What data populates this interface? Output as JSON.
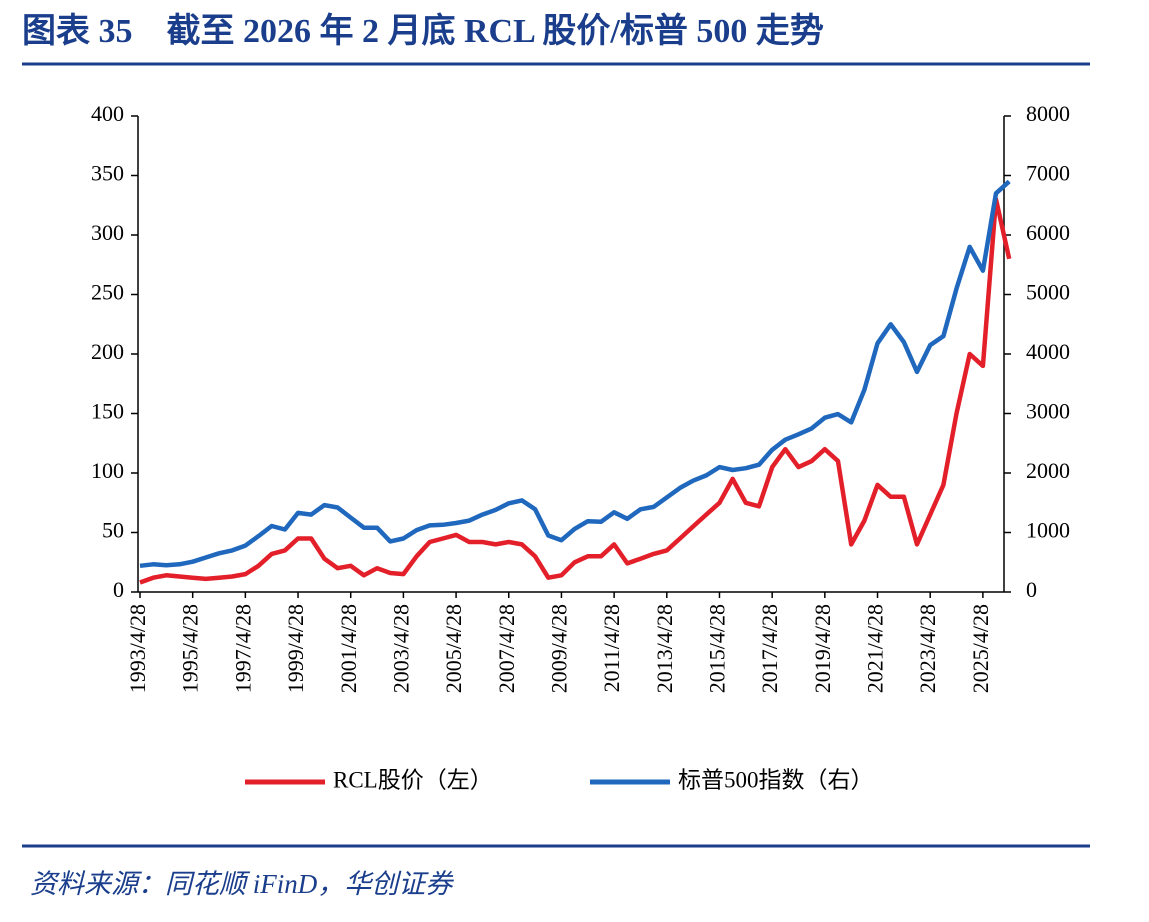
{
  "chart_data": {
    "type": "line",
    "title": "图表 35　截至 2026 年 2 月底 RCL 股价/标普 500 走势",
    "source": "资料来源：同花顺 iFinD，华创证券",
    "categories": [
      "1993/4/28",
      null,
      null,
      null,
      "1995/4/28",
      null,
      null,
      null,
      "1997/4/28",
      null,
      null,
      null,
      "1999/4/28",
      null,
      null,
      null,
      "2001/4/28",
      null,
      null,
      null,
      "2003/4/28",
      null,
      null,
      null,
      "2005/4/28",
      null,
      null,
      null,
      "2007/4/28",
      null,
      null,
      null,
      "2009/4/28",
      null,
      null,
      null,
      "2011/4/28",
      null,
      null,
      null,
      "2013/4/28",
      null,
      null,
      null,
      "2015/4/28",
      null,
      null,
      null,
      "2017/4/28",
      null,
      null,
      null,
      "2019/4/28",
      null,
      null,
      null,
      "2021/4/28",
      null,
      null,
      null,
      "2023/4/28",
      null,
      null,
      null,
      "2025/4/28",
      null,
      null
    ],
    "series": [
      {
        "name": "RCL股价（左）",
        "color": "#e3202a",
        "values": [
          8,
          12,
          14,
          13,
          12,
          11,
          12,
          13,
          15,
          22,
          32,
          35,
          45,
          45,
          28,
          20,
          22,
          14,
          20,
          16,
          15,
          30,
          42,
          45,
          48,
          42,
          42,
          40,
          42,
          40,
          30,
          12,
          14,
          25,
          30,
          30,
          40,
          24,
          28,
          32,
          35,
          45,
          55,
          65,
          75,
          95,
          75,
          72,
          105,
          120,
          105,
          110,
          120,
          110,
          40,
          60,
          90,
          80,
          80,
          40,
          65,
          90,
          150,
          200,
          190,
          330,
          280
        ]
      },
      {
        "name": "标普500指数（右）",
        "color": "#1f68bd",
        "axis": "y2",
        "values": [
          440,
          465,
          450,
          465,
          510,
          580,
          650,
          700,
          780,
          940,
          1110,
          1050,
          1330,
          1300,
          1460,
          1420,
          1250,
          1080,
          1080,
          850,
          900,
          1040,
          1120,
          1130,
          1160,
          1200,
          1300,
          1380,
          1490,
          1540,
          1390,
          950,
          870,
          1060,
          1190,
          1180,
          1340,
          1230,
          1390,
          1430,
          1590,
          1750,
          1870,
          1960,
          2100,
          2050,
          2080,
          2140,
          2390,
          2560,
          2650,
          2750,
          2930,
          2990,
          2850,
          3400,
          4180,
          4500,
          4200,
          3700,
          4150,
          4300,
          5100,
          5800,
          5400,
          6700,
          6900
        ]
      }
    ],
    "ylim": [
      0,
      400
    ],
    "yticks": [
      0,
      50,
      100,
      150,
      200,
      250,
      300,
      350,
      400
    ],
    "y2lim": [
      0,
      8000
    ],
    "y2ticks": [
      0,
      1000,
      2000,
      3000,
      4000,
      5000,
      6000,
      7000,
      8000
    ]
  }
}
